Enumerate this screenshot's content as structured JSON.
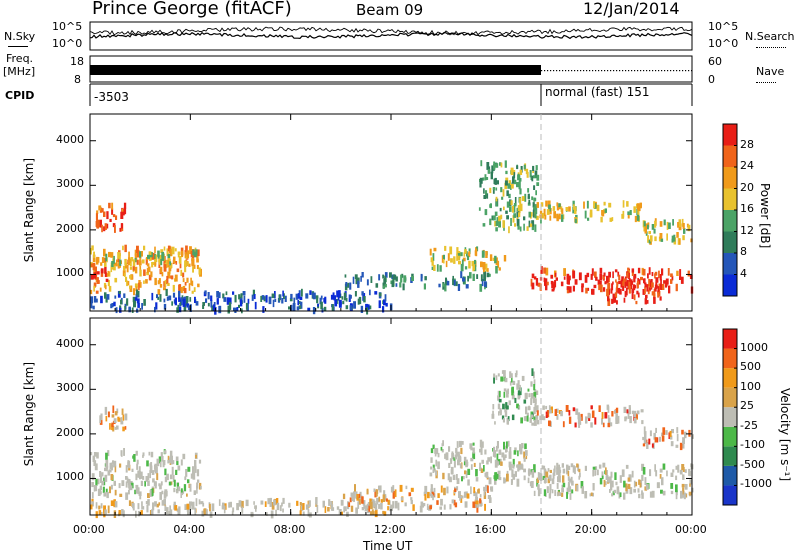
{
  "header": {
    "station": "Prince George (fitACF)",
    "beam": "Beam 09",
    "date": "12/Jan/2014"
  },
  "panels": {
    "nsky_label": "N.Sky",
    "nsky_ticks": [
      "10^5",
      "10^0"
    ],
    "nsearch_label": "N.Search",
    "nsearch_ticks": [
      "10^5",
      "10^0"
    ],
    "freq_label_1": "Freq.",
    "freq_label_2": "[MHz]",
    "freq_ticks": [
      "18",
      "8"
    ],
    "nave_label": "Nave",
    "nave_ticks": [
      "60",
      "0"
    ],
    "cpid_label": "CPID",
    "cpid_left": "-3503",
    "cpid_right": "normal (fast) 151"
  },
  "colors": {
    "power": [
      "#0a2bd6",
      "#2456b8",
      "#2f7c5a",
      "#4ba366",
      "#e8c22e",
      "#f09a1a",
      "#f0641a",
      "#e81e16"
    ],
    "velocity": [
      "#e81e16",
      "#f0641a",
      "#f09a1a",
      "#d9a34a",
      "#bdbdb4",
      "#4cb848",
      "#2f8a4f",
      "#1e5aa8",
      "#1a35c9"
    ],
    "gray": "#bdbdb4"
  },
  "chart_data": [
    {
      "type": "heatmap",
      "name": "power",
      "xlabel": "",
      "ylabel": "Slant Range [km]",
      "x_ticks": [
        "00:00",
        "04:00",
        "08:00",
        "12:00",
        "16:00",
        "20:00",
        "00:00"
      ],
      "y_ticks": [
        1000,
        2000,
        3000,
        4000
      ],
      "ylim": [
        180,
        4600
      ],
      "xlim_hours": [
        0,
        24
      ],
      "colorbar": {
        "label": "Power [dB]",
        "ticks": [
          "4",
          "8",
          "12",
          "16",
          "20",
          "24",
          "28"
        ],
        "range": [
          0,
          32
        ]
      },
      "scatter_regions": [
        {
          "t": [
            0.0,
            4.4
          ],
          "r": [
            600,
            1600
          ],
          "level": 5
        },
        {
          "t": [
            0.2,
            1.4
          ],
          "r": [
            2000,
            2600
          ],
          "level": 6
        },
        {
          "t": [
            0.0,
            0.7
          ],
          "r": [
            800,
            1100
          ],
          "level": 7
        },
        {
          "t": [
            0.5,
            4.2
          ],
          "r": [
            1200,
            1500
          ],
          "level": 4
        },
        {
          "t": [
            0.0,
            12.0
          ],
          "r": [
            180,
            600
          ],
          "level": 1
        },
        {
          "t": [
            10.0,
            16.0
          ],
          "r": [
            700,
            1000
          ],
          "level": 2
        },
        {
          "t": [
            13.5,
            16.5
          ],
          "r": [
            1100,
            1600
          ],
          "level": 4
        },
        {
          "t": [
            15.5,
            17.8
          ],
          "r": [
            2000,
            3500
          ],
          "level": 3
        },
        {
          "t": [
            17.8,
            24.0
          ],
          "r": [
            1000,
            1100
          ],
          "level": 6
        },
        {
          "t": [
            17.5,
            24.0
          ],
          "r": [
            600,
            1000
          ],
          "level": 7
        },
        {
          "t": [
            20.5,
            23.0
          ],
          "r": [
            350,
            900
          ],
          "level": 7
        },
        {
          "t": [
            17.5,
            22.0
          ],
          "r": [
            2200,
            2600
          ],
          "level": 4
        },
        {
          "t": [
            22.0,
            24.0
          ],
          "r": [
            1700,
            2200
          ],
          "level": 4
        }
      ]
    },
    {
      "type": "heatmap",
      "name": "velocity",
      "xlabel": "Time UT",
      "ylabel": "Slant Range [km]",
      "x_ticks": [
        "00:00",
        "04:00",
        "08:00",
        "12:00",
        "16:00",
        "20:00",
        "00:00"
      ],
      "y_ticks": [
        1000,
        2000,
        3000,
        4000
      ],
      "ylim": [
        180,
        4600
      ],
      "xlim_hours": [
        0,
        24
      ],
      "colorbar": {
        "label": "Velocity [m s⁻¹]",
        "ticks": [
          "1000",
          "500",
          "100",
          "25",
          "-25",
          "-100",
          "-500",
          "-1000"
        ]
      },
      "scatter_regions": [
        {
          "t": [
            0.0,
            4.4
          ],
          "r": [
            600,
            1600
          ],
          "level": 4
        },
        {
          "t": [
            0.2,
            1.4
          ],
          "r": [
            2100,
            2600
          ],
          "level": 2
        },
        {
          "t": [
            0.0,
            12.0
          ],
          "r": [
            180,
            500
          ],
          "level": 3
        },
        {
          "t": [
            10.0,
            16.0
          ],
          "r": [
            300,
            800
          ],
          "level": 2
        },
        {
          "t": [
            13.5,
            17.5
          ],
          "r": [
            900,
            1800
          ],
          "level": 4
        },
        {
          "t": [
            16.0,
            17.8
          ],
          "r": [
            2200,
            3400
          ],
          "level": 5
        },
        {
          "t": [
            17.5,
            24.0
          ],
          "r": [
            600,
            1300
          ],
          "level": 4
        },
        {
          "t": [
            17.5,
            22.0
          ],
          "r": [
            2200,
            2600
          ],
          "level": 1
        },
        {
          "t": [
            22.0,
            24.0
          ],
          "r": [
            1700,
            2100
          ],
          "level": 1
        }
      ]
    }
  ]
}
